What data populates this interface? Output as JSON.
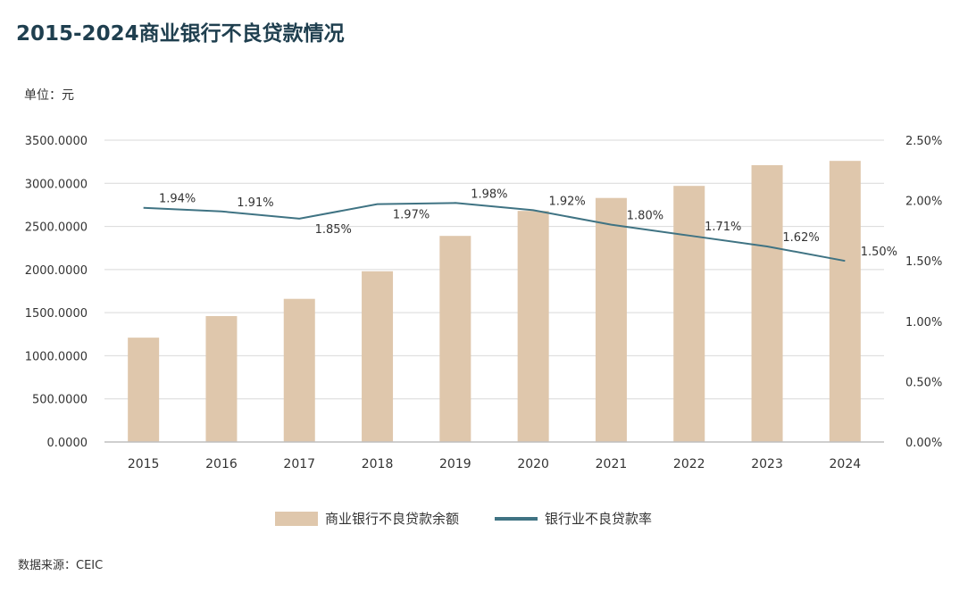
{
  "title": "2015-2024商业银行不良贷款情况",
  "unit_label": "单位：元",
  "source": "数据来源：CEIC",
  "colors": {
    "bar": "#dfc7ac",
    "line": "#3f7383",
    "grid": "#d9d9d9",
    "axis": "#bfbfbf",
    "title": "#1f3f4f"
  },
  "chart_data": {
    "type": "bar",
    "categories": [
      "2015",
      "2016",
      "2017",
      "2018",
      "2019",
      "2020",
      "2021",
      "2022",
      "2023",
      "2024"
    ],
    "series": [
      {
        "name": "商业银行不良贷款余额",
        "type": "bar",
        "axis": "left",
        "values": [
          1210,
          1460,
          1660,
          1980,
          2390,
          2680,
          2830,
          2970,
          3210,
          3260
        ]
      },
      {
        "name": "银行业不良贷款率",
        "type": "line",
        "axis": "right",
        "values": [
          1.94,
          1.91,
          1.85,
          1.97,
          1.98,
          1.92,
          1.8,
          1.71,
          1.62,
          1.5
        ],
        "labels": [
          "1.94%",
          "1.91%",
          "1.85%",
          "1.97%",
          "1.98%",
          "1.92%",
          "1.80%",
          "1.71%",
          "1.62%",
          "1.50%"
        ]
      }
    ],
    "y_left": {
      "ylim": [
        0,
        3500
      ],
      "ticks": [
        0,
        500,
        1000,
        1500,
        2000,
        2500,
        3000,
        3500
      ],
      "tick_labels": [
        "0.0000",
        "500.0000",
        "1000.0000",
        "1500.0000",
        "2000.0000",
        "2500.0000",
        "3000.0000",
        "3500.0000"
      ]
    },
    "y_right": {
      "ylim": [
        0,
        2.5
      ],
      "ticks": [
        0,
        0.5,
        1,
        1.5,
        2,
        2.5
      ],
      "tick_labels": [
        "0.00%",
        "0.50%",
        "1.00%",
        "1.50%",
        "2.00%",
        "2.50%"
      ]
    },
    "grid": true,
    "legend": "bottom"
  }
}
